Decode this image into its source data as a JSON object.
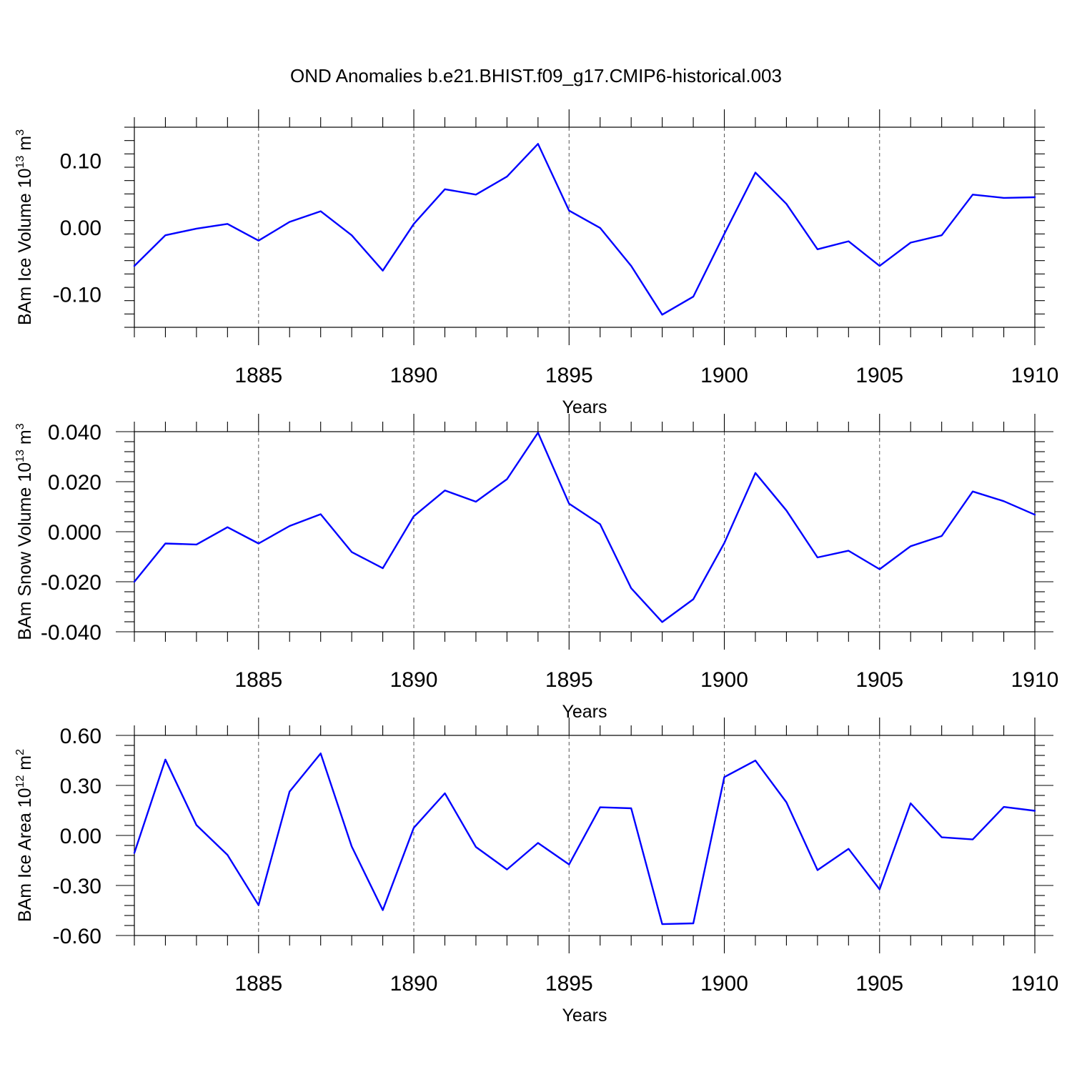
{
  "title": "OND Anomalies b.e21.BHIST.f09_g17.CMIP6-historical.003",
  "line_color": "#0000ff",
  "chart_data": [
    {
      "type": "line",
      "title": "OND Anomalies b.e21.BHIST.f09_g17.CMIP6-historical.003",
      "xlabel": "Years",
      "ylabel": "BAm Ice Volume 10",
      "ylabel_exp": "13",
      "ylabel_unit": " m",
      "ylabel_unit_exp": "3",
      "xlim": [
        1881,
        1910
      ],
      "ylim": [
        -0.15,
        0.15
      ],
      "xticks": [
        1885,
        1890,
        1895,
        1900,
        1905,
        1910
      ],
      "yticks": [
        0.1,
        0.0,
        -0.1
      ],
      "ytick_labels": [
        "0.10",
        "0.00",
        "-0.10"
      ],
      "grid": "dashed vertical at major x ticks",
      "series": [
        {
          "name": "BAm Ice Volume",
          "x": [
            1881,
            1882,
            1883,
            1884,
            1885,
            1886,
            1887,
            1888,
            1889,
            1890,
            1891,
            1892,
            1893,
            1894,
            1895,
            1896,
            1897,
            1898,
            1899,
            1900,
            1901,
            1902,
            1903,
            1904,
            1905,
            1906,
            1907,
            1908,
            1909,
            1910
          ],
          "values": [
            -0.058,
            -0.012,
            -0.002,
            0.005,
            -0.02,
            0.008,
            0.024,
            -0.012,
            -0.065,
            0.005,
            0.057,
            0.049,
            0.076,
            0.125,
            0.025,
            -0.001,
            -0.058,
            -0.131,
            -0.104,
            -0.01,
            0.082,
            0.035,
            -0.033,
            -0.021,
            -0.058,
            -0.023,
            -0.012,
            0.049,
            0.044,
            0.045
          ]
        }
      ]
    },
    {
      "type": "line",
      "xlabel": "Years",
      "ylabel": "BAm Snow Volume 10",
      "ylabel_exp": "13",
      "ylabel_unit": " m",
      "ylabel_unit_exp": "3",
      "xlim": [
        1881,
        1910
      ],
      "ylim": [
        -0.04,
        0.04
      ],
      "xticks": [
        1885,
        1890,
        1895,
        1900,
        1905,
        1910
      ],
      "yticks": [
        0.04,
        0.02,
        0.0,
        -0.02,
        -0.04
      ],
      "ytick_labels": [
        "0.040",
        "0.020",
        "0.000",
        "-0.020",
        "-0.040"
      ],
      "grid": "dashed vertical at major x ticks",
      "series": [
        {
          "name": "BAm Snow Volume",
          "x": [
            1881,
            1882,
            1883,
            1884,
            1885,
            1886,
            1887,
            1888,
            1889,
            1890,
            1891,
            1892,
            1893,
            1894,
            1895,
            1896,
            1897,
            1898,
            1899,
            1900,
            1901,
            1902,
            1903,
            1904,
            1905,
            1906,
            1907,
            1908,
            1909,
            1910
          ],
          "values": [
            -0.02,
            -0.0047,
            -0.0051,
            0.0018,
            -0.0047,
            0.0023,
            0.007,
            -0.0081,
            -0.0146,
            0.0062,
            0.0165,
            0.012,
            0.021,
            0.0396,
            0.0112,
            0.003,
            -0.0226,
            -0.0361,
            -0.027,
            -0.0045,
            0.0235,
            0.0085,
            -0.0103,
            -0.0076,
            -0.015,
            -0.0058,
            -0.0017,
            0.0161,
            0.0122,
            0.0068
          ]
        }
      ]
    },
    {
      "type": "line",
      "xlabel": "Years",
      "ylabel": "BAm Ice Area 10",
      "ylabel_exp": "12",
      "ylabel_unit": " m",
      "ylabel_unit_exp": "2",
      "xlim": [
        1881,
        1910
      ],
      "ylim": [
        -0.6,
        0.6
      ],
      "xticks": [
        1885,
        1890,
        1895,
        1900,
        1905,
        1910
      ],
      "yticks": [
        0.6,
        0.3,
        0.0,
        -0.3,
        -0.6
      ],
      "ytick_labels": [
        "0.60",
        "0.30",
        "0.00",
        "-0.30",
        "-0.60"
      ],
      "grid": "dashed vertical at major x ticks",
      "series": [
        {
          "name": "BAm Ice Area",
          "x": [
            1881,
            1882,
            1883,
            1884,
            1885,
            1886,
            1887,
            1888,
            1889,
            1890,
            1891,
            1892,
            1893,
            1894,
            1895,
            1896,
            1897,
            1898,
            1899,
            1900,
            1901,
            1902,
            1903,
            1904,
            1905,
            1906,
            1907,
            1908,
            1909,
            1910
          ],
          "values": [
            -0.105,
            0.455,
            0.062,
            -0.117,
            -0.418,
            0.263,
            0.492,
            -0.066,
            -0.448,
            0.046,
            0.253,
            -0.069,
            -0.204,
            -0.045,
            -0.174,
            0.169,
            0.163,
            -0.532,
            -0.527,
            0.35,
            0.449,
            0.199,
            -0.208,
            -0.08,
            -0.323,
            0.193,
            -0.011,
            -0.024,
            0.171,
            0.148
          ]
        }
      ]
    }
  ]
}
